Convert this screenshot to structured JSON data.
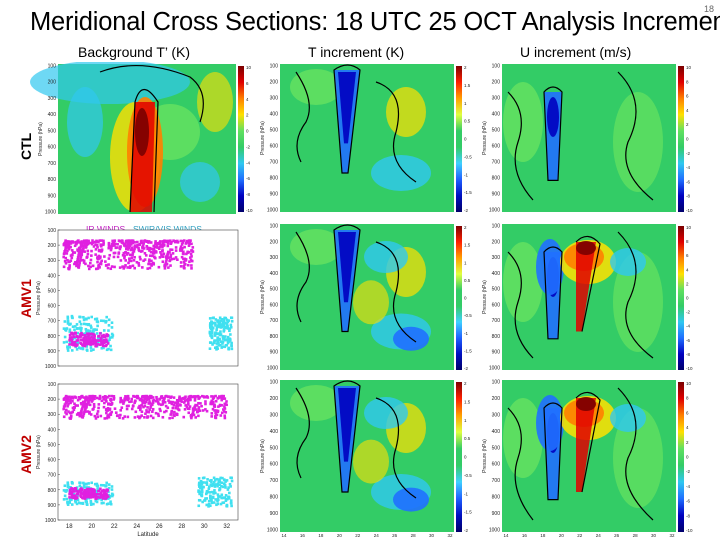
{
  "slide": {
    "title": "Meridional Cross Sections: 18 UTC 25 OCT Analysis Increments",
    "number": "18"
  },
  "columns": [
    "Background T’ (K)",
    "T increment (K)",
    "U increment (m/s)"
  ],
  "rows": [
    "CTL",
    "AMV1",
    "AMV2"
  ],
  "legend": {
    "ir": "IR WINDS",
    "vis": "SWIR/VIS WINDS"
  },
  "colors": {
    "ir_winds": "#e020e0",
    "vis_winds": "#40e0f0",
    "row_label": "#c00000",
    "field_background": "#33cc66"
  },
  "axis": {
    "ylabel": "Pressure (hPa)",
    "xlabel": "Latitude",
    "pressure_ticks": [
      "100",
      "200",
      "300",
      "400",
      "500",
      "600",
      "700",
      "800",
      "900",
      "1000"
    ],
    "amv_pressure_ticks": [
      "100",
      "200",
      "300",
      "400",
      "500",
      "600",
      "700",
      "800",
      "900",
      "1000"
    ],
    "lat_ticks": [
      "18",
      "20",
      "22",
      "24",
      "26",
      "28",
      "30",
      "32"
    ],
    "field_lat_ticks": [
      "14",
      "16",
      "18",
      "20",
      "22",
      "24",
      "26",
      "28",
      "30",
      "32"
    ]
  },
  "colorbars": {
    "background": [
      "10",
      "6",
      "4",
      "2",
      "0",
      "-2",
      "-4",
      "-6",
      "-8",
      "-10"
    ],
    "t_increment": [
      "2",
      "1.5",
      "1",
      "0.5",
      "0",
      "-0.5",
      "-1",
      "-1.5",
      "-2"
    ],
    "u_increment": [
      "10",
      "8",
      "6",
      "4",
      "2",
      "0",
      "-2",
      "-4",
      "-6",
      "-8",
      "-10"
    ]
  },
  "chart_data": [
    {
      "type": "scatter",
      "title": "",
      "xlabel": "Latitude",
      "ylabel": "Pressure (hPa)",
      "xlim": [
        17,
        33
      ],
      "ylim": [
        1000,
        100
      ],
      "series": [
        {
          "name": "IR WINDS",
          "x_ranges": [
            [
              17.5,
              29
            ],
            [
              18,
              21.5
            ]
          ],
          "y_ranges": [
            [
              170,
              360
            ],
            [
              780,
              870
            ]
          ]
        },
        {
          "name": "SWIR/VIS WINDS",
          "x_ranges": [
            [
              17.5,
              22
            ],
            [
              30.5,
              32.5
            ]
          ],
          "y_ranges": [
            [
              670,
              900
            ],
            [
              680,
              890
            ]
          ]
        }
      ]
    },
    {
      "type": "scatter",
      "title": "",
      "xlabel": "Latitude",
      "ylabel": "Pressure (hPa)",
      "xlim": [
        17,
        33
      ],
      "ylim": [
        1000,
        100
      ],
      "series": [
        {
          "name": "IR WINDS",
          "x_ranges": [
            [
              17.5,
              32
            ],
            [
              18,
              21.5
            ]
          ],
          "y_ranges": [
            [
              180,
              330
            ],
            [
              790,
              860
            ]
          ]
        },
        {
          "name": "SWIR/VIS WINDS",
          "x_ranges": [
            [
              17.5,
              22
            ],
            [
              29.5,
              32.5
            ]
          ],
          "y_ranges": [
            [
              750,
              900
            ],
            [
              720,
              910
            ]
          ]
        }
      ]
    }
  ]
}
